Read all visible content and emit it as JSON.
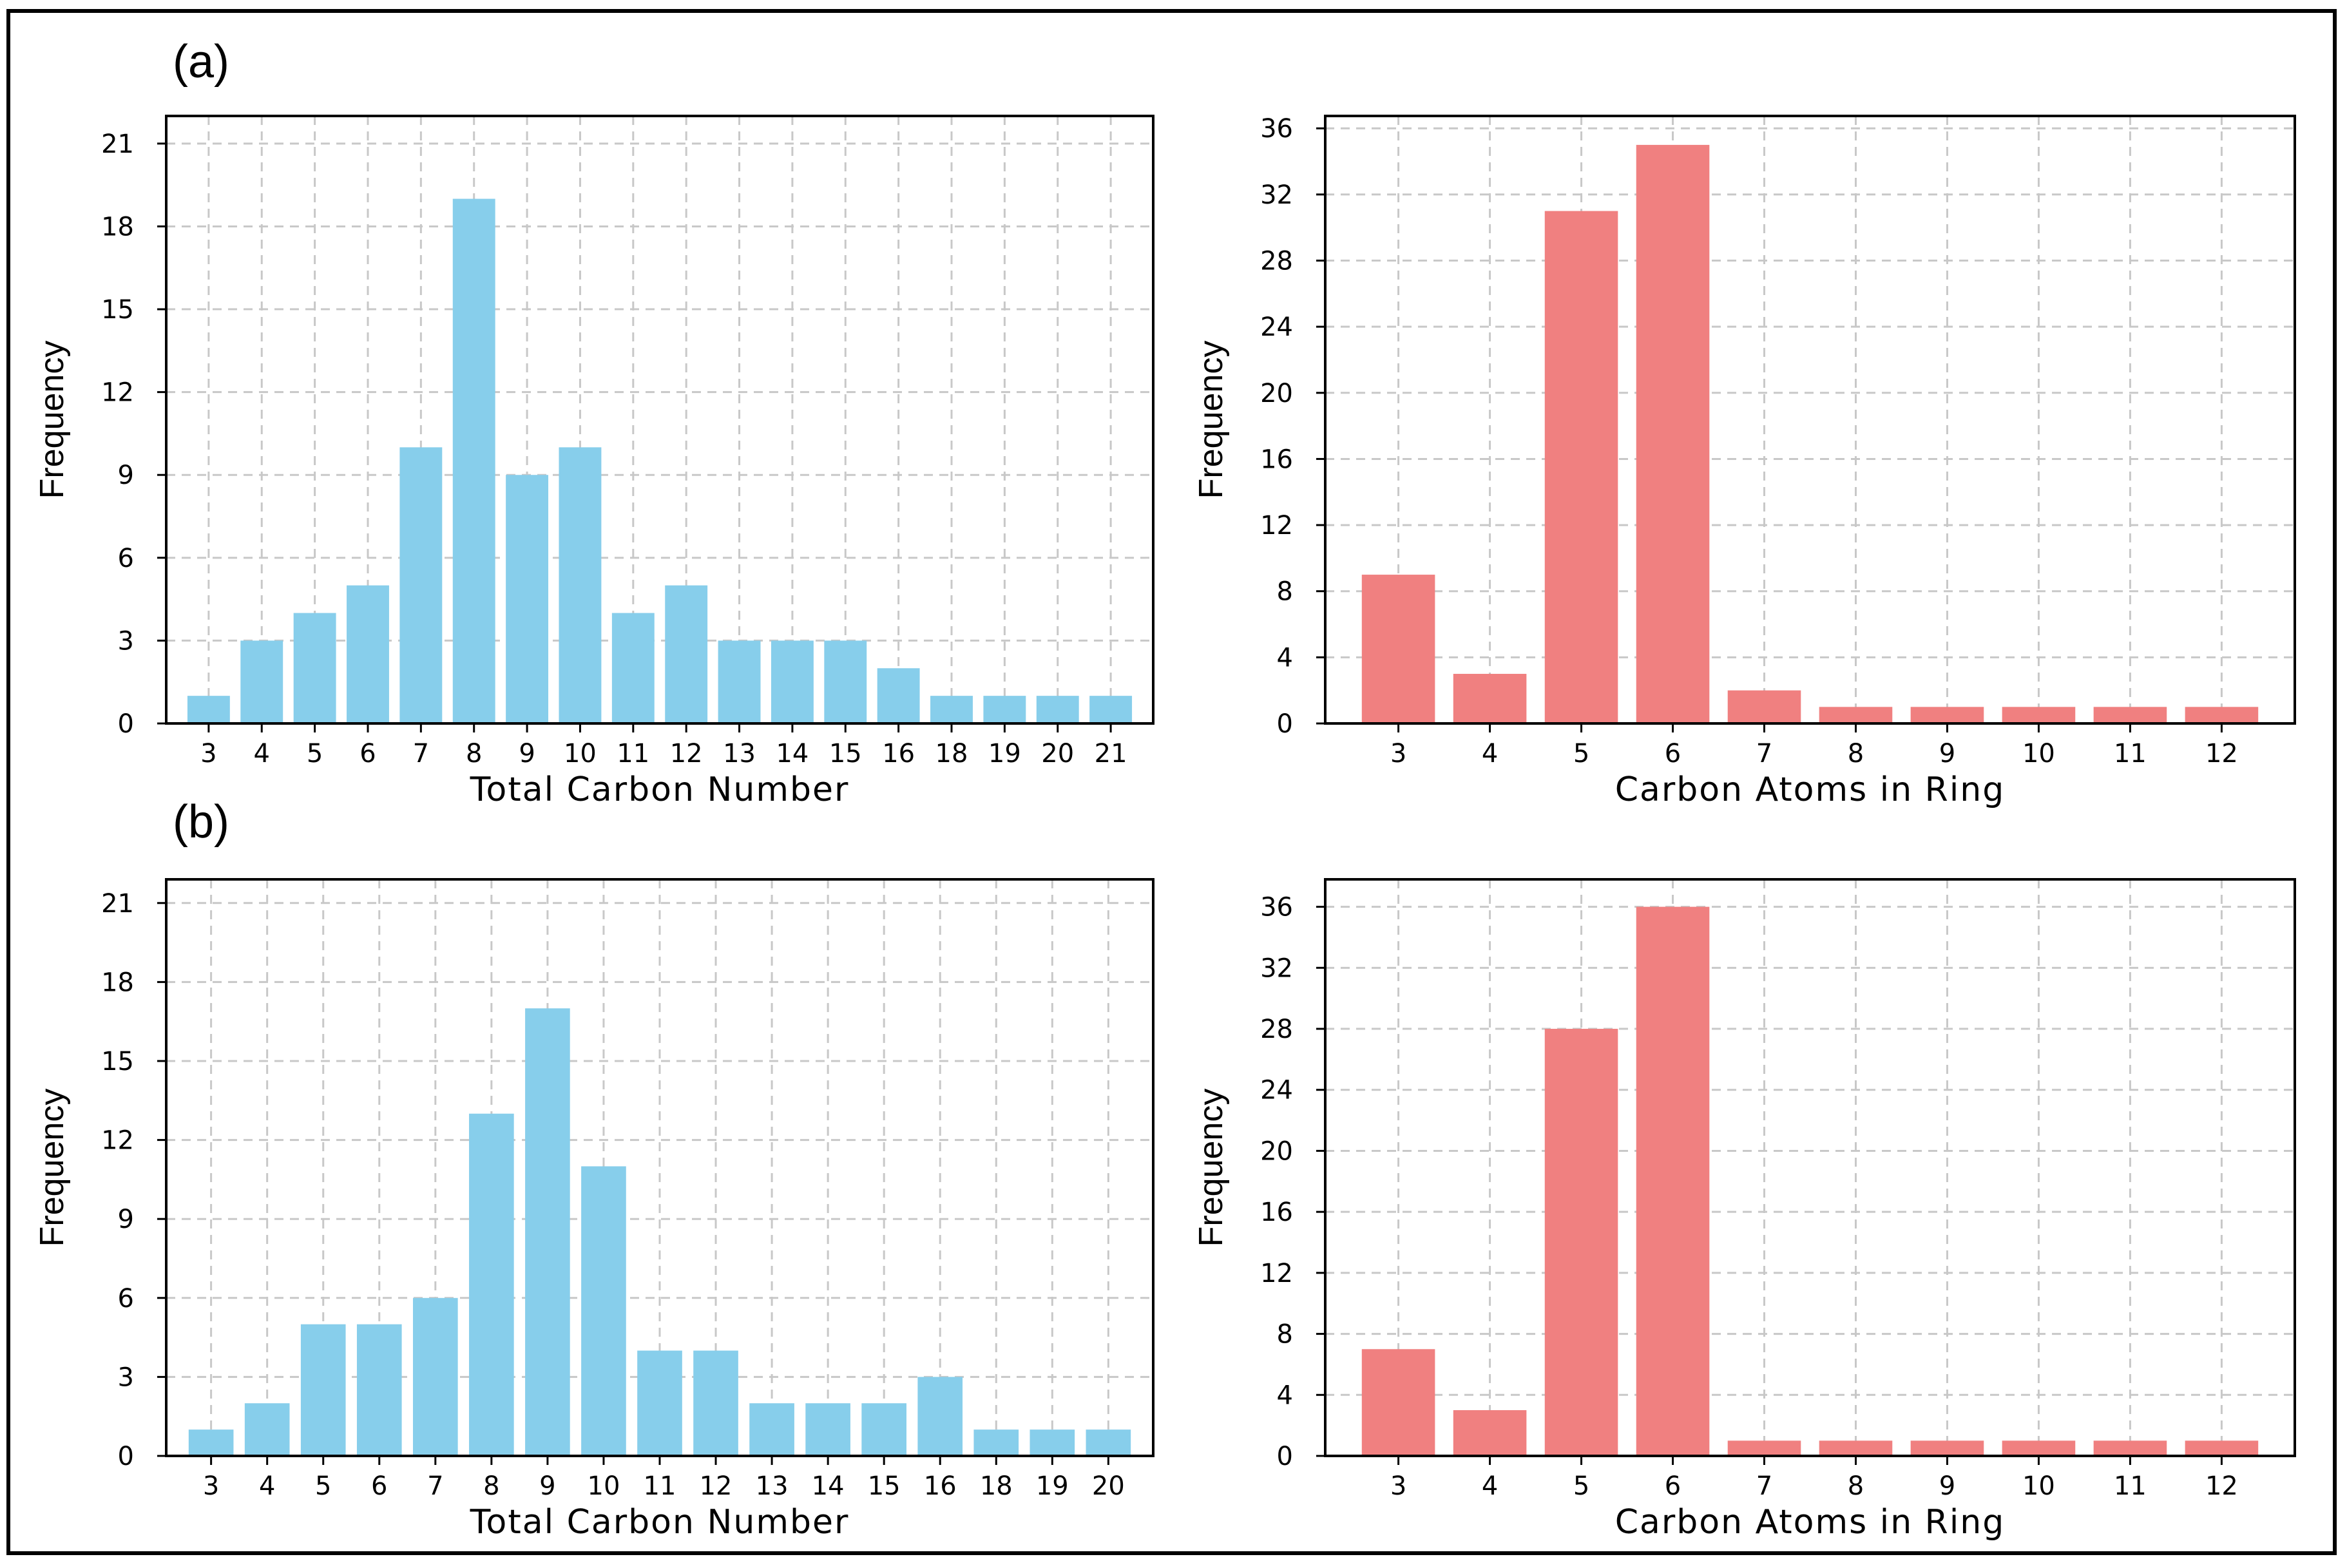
{
  "panel_labels": [
    "(a)",
    "(b)"
  ],
  "colors": {
    "blue": "#87CEEB",
    "red": "#F08080",
    "grid": "#c8c8c8",
    "axis": "#000000"
  },
  "chart_data": [
    {
      "panel": "(a)",
      "type": "bar",
      "color": "#87CEEB",
      "xlabel": "Total Carbon Number",
      "ylabel": "Frequency",
      "categories": [
        "3",
        "4",
        "5",
        "6",
        "7",
        "8",
        "9",
        "10",
        "11",
        "12",
        "13",
        "14",
        "15",
        "16",
        "18",
        "19",
        "20",
        "21"
      ],
      "values": [
        1,
        3,
        4,
        5,
        10,
        19,
        9,
        10,
        4,
        5,
        3,
        3,
        3,
        2,
        1,
        1,
        1,
        1
      ],
      "yticks": [
        0,
        3,
        6,
        9,
        12,
        15,
        18,
        21
      ],
      "ylim": [
        0,
        22
      ],
      "grid": true
    },
    {
      "panel": "(a)",
      "type": "bar",
      "color": "#F08080",
      "xlabel": "Carbon Atoms in Ring",
      "ylabel": "Frequency",
      "categories": [
        "3",
        "4",
        "5",
        "6",
        "7",
        "8",
        "9",
        "10",
        "11",
        "12"
      ],
      "values": [
        9,
        3,
        31,
        35,
        2,
        1,
        1,
        1,
        1,
        1
      ],
      "yticks": [
        0,
        4,
        8,
        12,
        16,
        20,
        24,
        28,
        32,
        36
      ],
      "ylim": [
        0,
        36.75
      ],
      "grid": true
    },
    {
      "panel": "(b)",
      "type": "bar",
      "color": "#87CEEB",
      "xlabel": "Total Carbon Number",
      "ylabel": "Frequency",
      "categories": [
        "3",
        "4",
        "5",
        "6",
        "7",
        "8",
        "9",
        "10",
        "11",
        "12",
        "13",
        "14",
        "15",
        "16",
        "18",
        "19",
        "20"
      ],
      "values": [
        1,
        2,
        5,
        5,
        6,
        13,
        17,
        11,
        4,
        4,
        2,
        2,
        2,
        3,
        1,
        1,
        1
      ],
      "yticks": [
        0,
        3,
        6,
        9,
        12,
        15,
        18,
        21
      ],
      "ylim": [
        0,
        21.9
      ],
      "grid": true
    },
    {
      "panel": "(b)",
      "type": "bar",
      "color": "#F08080",
      "xlabel": "Carbon Atoms in Ring",
      "ylabel": "Frequency",
      "categories": [
        "3",
        "4",
        "5",
        "6",
        "7",
        "8",
        "9",
        "10",
        "11",
        "12"
      ],
      "values": [
        7,
        3,
        28,
        36,
        1,
        1,
        1,
        1,
        1,
        1
      ],
      "yticks": [
        0,
        4,
        8,
        12,
        16,
        20,
        24,
        28,
        32,
        36
      ],
      "ylim": [
        0,
        37.8
      ],
      "grid": true
    }
  ]
}
